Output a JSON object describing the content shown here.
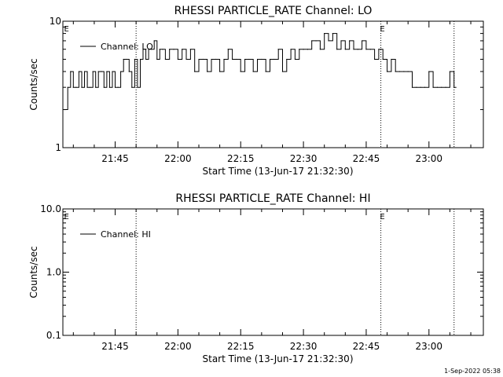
{
  "chart_data": [
    {
      "type": "line",
      "title": "RHESSI PARTICLE_RATE Channel: LO",
      "xlabel": "Start Time (13-Jun-17 21:32:30)",
      "ylabel": "Counts/sec",
      "y_scale": "log",
      "ylim": [
        1,
        10
      ],
      "xlim": [
        "21:32:30",
        "23:13:00"
      ],
      "x_ticks": [
        "21:45",
        "22:00",
        "22:15",
        "22:30",
        "22:45",
        "23:00"
      ],
      "y_ticks": [
        "1",
        "10"
      ],
      "legend": {
        "placement": "top-left",
        "entries": [
          "Channel: LO"
        ]
      },
      "vertical_markers": [
        "21:50:00",
        "22:48:30",
        "23:06:00"
      ],
      "marker_labels": [
        {
          "text": "E",
          "at": "21:33:00"
        },
        {
          "text": "E",
          "at": "22:48:30"
        }
      ],
      "series": [
        {
          "name": "Channel: LO",
          "x": [
            "21:33:00",
            "21:33:40",
            "21:34:20",
            "21:35:00",
            "21:35:40",
            "21:36:20",
            "21:37:00",
            "21:37:40",
            "21:38:20",
            "21:39:00",
            "21:39:40",
            "21:40:20",
            "21:41:00",
            "21:41:40",
            "21:42:20",
            "21:43:00",
            "21:43:40",
            "21:44:20",
            "21:45:00",
            "21:45:40",
            "21:46:20",
            "21:47:00",
            "21:47:40",
            "21:48:20",
            "21:49:00",
            "21:49:40",
            "21:50:20",
            "21:51:00",
            "21:51:40",
            "21:52:20",
            "21:53:00",
            "21:53:40",
            "21:54:20",
            "21:55:00",
            "21:55:40",
            "21:56:20",
            "21:57:00",
            "21:58:00",
            "21:59:00",
            "22:00:00",
            "22:01:00",
            "22:02:00",
            "22:03:00",
            "22:04:00",
            "22:05:00",
            "22:06:00",
            "22:07:00",
            "22:08:00",
            "22:09:00",
            "22:10:00",
            "22:11:00",
            "22:12:00",
            "22:13:00",
            "22:14:00",
            "22:15:00",
            "22:16:00",
            "22:17:00",
            "22:18:00",
            "22:19:00",
            "22:20:00",
            "22:21:00",
            "22:22:00",
            "22:23:00",
            "22:24:00",
            "22:25:00",
            "22:26:00",
            "22:27:00",
            "22:28:00",
            "22:29:00",
            "22:30:00",
            "22:31:00",
            "22:32:00",
            "22:33:00",
            "22:34:00",
            "22:35:00",
            "22:36:00",
            "22:37:00",
            "22:38:00",
            "22:39:00",
            "22:40:00",
            "22:41:00",
            "22:42:00",
            "22:43:00",
            "22:44:00",
            "22:45:00",
            "22:46:00",
            "22:47:00",
            "22:48:00",
            "22:49:00",
            "22:50:00",
            "22:51:00",
            "22:52:00",
            "22:53:00",
            "22:54:00",
            "22:55:00",
            "22:56:00",
            "22:57:00",
            "22:58:00",
            "22:59:00",
            "23:00:00",
            "23:01:00",
            "23:02:00",
            "23:03:00",
            "23:04:00",
            "23:05:00",
            "23:06:00"
          ],
          "values": [
            2,
            3,
            4,
            3,
            3,
            4,
            3,
            4,
            3,
            3,
            4,
            3,
            4,
            4,
            3,
            4,
            3,
            4,
            3,
            3,
            4,
            5,
            5,
            4,
            3,
            5,
            3,
            5,
            6,
            5,
            6,
            6,
            7,
            5,
            6,
            6,
            5,
            6,
            6,
            5,
            6,
            5,
            6,
            4,
            5,
            5,
            4,
            5,
            5,
            4,
            5,
            6,
            5,
            5,
            4,
            5,
            5,
            4,
            5,
            5,
            4,
            5,
            5,
            6,
            4,
            5,
            6,
            5,
            6,
            6,
            6,
            7,
            7,
            6,
            8,
            7,
            8,
            6,
            7,
            6,
            7,
            6,
            6,
            7,
            6,
            6,
            5,
            6,
            5,
            4,
            5,
            4,
            4,
            4,
            4,
            3,
            3,
            3,
            3,
            4,
            3,
            3,
            3,
            3,
            4,
            3
          ]
        }
      ]
    },
    {
      "type": "line",
      "title": "RHESSI PARTICLE_RATE Channel: HI",
      "xlabel": "Start Time (13-Jun-17 21:32:30)",
      "ylabel": "Counts/sec",
      "y_scale": "log",
      "ylim": [
        0.1,
        10
      ],
      "xlim": [
        "21:32:30",
        "23:13:00"
      ],
      "x_ticks": [
        "21:45",
        "22:00",
        "22:15",
        "22:30",
        "22:45",
        "23:00"
      ],
      "y_ticks": [
        "0.1",
        "1.0",
        "10.0"
      ],
      "legend": {
        "placement": "top-left",
        "entries": [
          "Channel: HI"
        ]
      },
      "vertical_markers": [
        "21:50:00",
        "22:48:30",
        "23:06:00"
      ],
      "marker_labels": [
        {
          "text": "E",
          "at": "21:33:00"
        },
        {
          "text": "E",
          "at": "22:48:30"
        }
      ],
      "series": [
        {
          "name": "Channel: HI",
          "x": [],
          "values": []
        }
      ]
    }
  ],
  "footer": {
    "timestamp": "1-Sep-2022 05:38"
  }
}
